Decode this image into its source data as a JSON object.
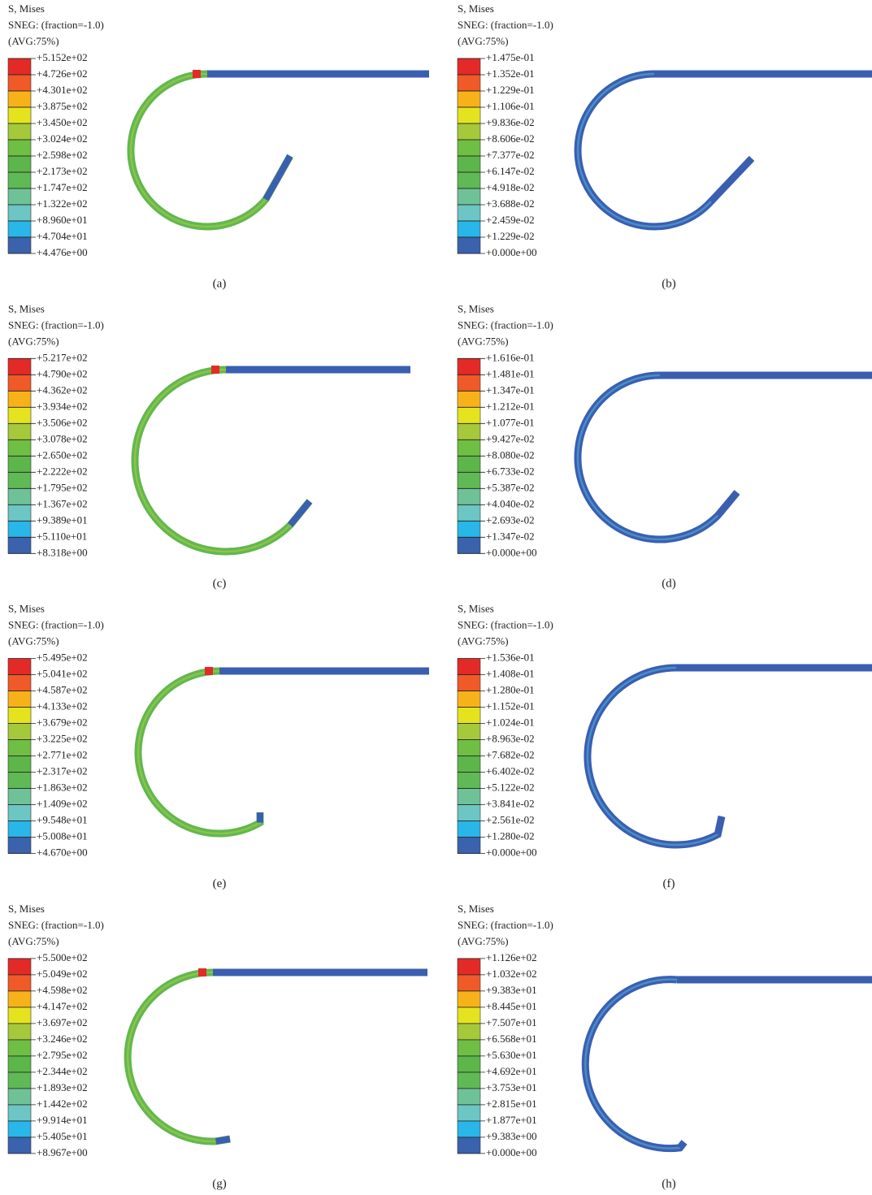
{
  "panels": [
    {
      "title": "S, Mises",
      "subtitle": "SNEG: (fraction=-1.0)",
      "averaging": "(AVG:75%)",
      "levels": [
        "+5.152e+02",
        "+4.726e+02",
        "+4.301e+02",
        "+3.875e+02",
        "+3.450e+02",
        "+3.024e+02",
        "+2.598e+02",
        "+2.173e+02",
        "+1.747e+02",
        "+1.322e+02",
        "+8.960e+01",
        "+4.704e+01",
        "+4.476e+00"
      ],
      "caption": "(a)"
    },
    {
      "title": "S, Mises",
      "subtitle": "SNEG: (fraction=-1.0)",
      "averaging": "(AVG:75%)",
      "levels": [
        "+1.475e-01",
        "+1.352e-01",
        "+1.229e-01",
        "+1.106e-01",
        "+9.836e-02",
        "+8.606e-02",
        "+7.377e-02",
        "+6.147e-02",
        "+4.918e-02",
        "+3.688e-02",
        "+2.459e-02",
        "+1.229e-02",
        "+0.000e+00"
      ],
      "caption": "(b)"
    },
    {
      "title": "S, Mises",
      "subtitle": "SNEG: (fraction=-1.0)",
      "averaging": "(AVG:75%)",
      "levels": [
        "+5.217e+02",
        "+4.790e+02",
        "+4.362e+02",
        "+3.934e+02",
        "+3.506e+02",
        "+3.078e+02",
        "+2.650e+02",
        "+2.222e+02",
        "+1.795e+02",
        "+1.367e+02",
        "+9.389e+01",
        "+5.110e+01",
        "+8.318e+00"
      ],
      "caption": "(c)"
    },
    {
      "title": "S, Mises",
      "subtitle": "SNEG: (fraction=-1.0)",
      "averaging": "(AVG:75%)",
      "levels": [
        "+1.616e-01",
        "+1.481e-01",
        "+1.347e-01",
        "+1.212e-01",
        "+1.077e-01",
        "+9.427e-02",
        "+8.080e-02",
        "+6.733e-02",
        "+5.387e-02",
        "+4.040e-02",
        "+2.693e-02",
        "+1.347e-02",
        "+0.000e+00"
      ],
      "caption": "(d)"
    },
    {
      "title": "S, Mises",
      "subtitle": "SNEG: (fraction=-1.0)",
      "averaging": "(AVG:75%)",
      "levels": [
        "+5.495e+02",
        "+5.041e+02",
        "+4.587e+02",
        "+4.133e+02",
        "+3.679e+02",
        "+3.225e+02",
        "+2.771e+02",
        "+2.317e+02",
        "+1.863e+02",
        "+1.409e+02",
        "+9.548e+01",
        "+5.008e+01",
        "+4.670e+00"
      ],
      "caption": "(e)"
    },
    {
      "title": "S, Mises",
      "subtitle": "SNEG: (fraction=-1.0)",
      "averaging": "(AVG:75%)",
      "levels": [
        "+1.536e-01",
        "+1.408e-01",
        "+1.280e-01",
        "+1.152e-01",
        "+1.024e-01",
        "+8.963e-02",
        "+7.682e-02",
        "+6.402e-02",
        "+5.122e-02",
        "+3.841e-02",
        "+2.561e-02",
        "+1.280e-02",
        "+0.000e+00"
      ],
      "caption": "(f)"
    },
    {
      "title": "S, Mises",
      "subtitle": "SNEG: (fraction=-1.0)",
      "averaging": "(AVG:75%)",
      "levels": [
        "+5.500e+02",
        "+5.049e+02",
        "+4.598e+02",
        "+4.147e+02",
        "+3.697e+02",
        "+3.246e+02",
        "+2.795e+02",
        "+2.344e+02",
        "+1.893e+02",
        "+1.442e+02",
        "+9.914e+01",
        "+5.405e+01",
        "+8.967e+00"
      ],
      "caption": "(g)"
    },
    {
      "title": "S, Mises",
      "subtitle": "SNEG: (fraction=-1.0)",
      "averaging": "(AVG:75%)",
      "levels": [
        "+1.126e+02",
        "+1.032e+02",
        "+9.383e+01",
        "+8.445e+01",
        "+7.507e+01",
        "+6.568e+01",
        "+5.630e+01",
        "+4.692e+01",
        "+3.753e+01",
        "+2.815e+01",
        "+1.877e+01",
        "+9.383e+00",
        "+0.000e+00"
      ],
      "caption": "(h)"
    }
  ]
}
